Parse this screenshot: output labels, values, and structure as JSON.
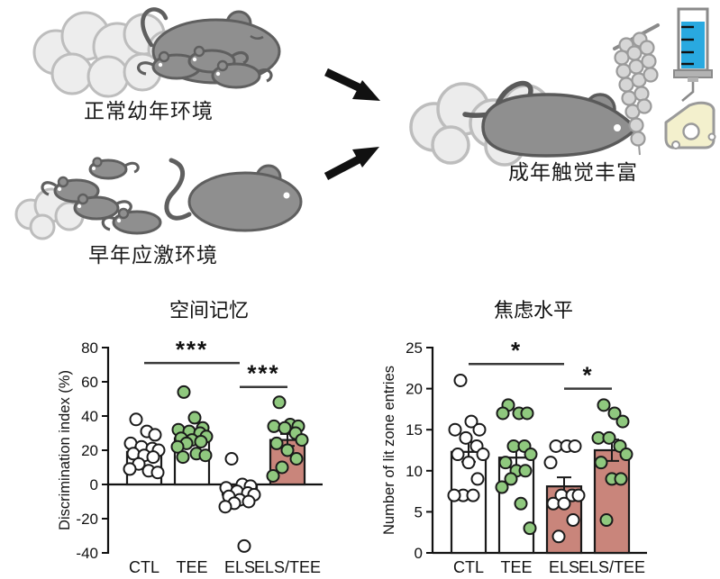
{
  "illustration": {
    "normal_env_label": "正常幼年环境",
    "stress_env_label": "早年应激环境",
    "enrichment_label": "成年触觉丰富",
    "icon_names": [
      "mouse-family-icon",
      "scattered-mice-icon",
      "bedding-cloud-icon",
      "arrow-icon",
      "beads-icon",
      "syringe-icon",
      "cheese-icon"
    ]
  },
  "colors": {
    "stress_bar": "#c9857b",
    "green_point": "#8fc87e",
    "white_point": "#ffffff",
    "syringe_blue": "#29a9e0",
    "cheese_yellow": "#f3f0cd",
    "mouse_gray": "#8f8f8f",
    "cloud_gray": "#ededed",
    "axis_black": "#111111"
  },
  "chart_data": [
    {
      "type": "bar",
      "title": "空间记忆",
      "ylabel": "Discrimination index (%)",
      "xlabel": "",
      "ylim": [
        -40,
        80
      ],
      "yticks": [
        80,
        60,
        40,
        20,
        0,
        -20,
        -40
      ],
      "grid": false,
      "legend": null,
      "categories": [
        "CTL",
        "TEE",
        "ELS",
        "ELS/TEE"
      ],
      "series": [
        {
          "name": "CTL",
          "mean": 19,
          "sem": 2.5,
          "bar_fill": "#ffffff",
          "point_fill": "#ffffff",
          "points": [
            38,
            31,
            29,
            24,
            22,
            21,
            20,
            18,
            17,
            16,
            12,
            9,
            8,
            7
          ]
        },
        {
          "name": "TEE",
          "mean": 27,
          "sem": 2.5,
          "bar_fill": "#ffffff",
          "point_fill": "#8fc87e",
          "points": [
            54,
            39,
            33,
            32,
            31,
            30,
            28,
            27,
            26,
            25,
            24,
            22,
            18,
            17,
            16
          ]
        },
        {
          "name": "ELS",
          "mean": -6,
          "sem": 3,
          "bar_fill": "#c9857b",
          "point_fill": "#ffffff",
          "points": [
            15,
            0,
            -1,
            -2,
            -4,
            -5,
            -6,
            -7,
            -9,
            -10,
            -11,
            -13,
            -36
          ]
        },
        {
          "name": "ELS/TEE",
          "mean": 26,
          "sem": 3.5,
          "bar_fill": "#c9857b",
          "point_fill": "#8fc87e",
          "points": [
            48,
            35,
            34,
            34,
            33,
            30,
            26,
            24,
            20,
            15,
            10,
            5
          ]
        }
      ],
      "significance": [
        {
          "from": "CTL",
          "to": "ELS",
          "y": 71,
          "label": "***"
        },
        {
          "from": "ELS",
          "to": "ELS/TEE",
          "y": 57,
          "label": "***"
        }
      ]
    },
    {
      "type": "bar",
      "title": "焦虑水平",
      "ylabel": "Number of lit zone entries",
      "xlabel": "",
      "ylim": [
        0,
        25
      ],
      "yticks": [
        25,
        20,
        15,
        10,
        5,
        0
      ],
      "grid": false,
      "legend": null,
      "categories": [
        "CTL",
        "TEE",
        "ELS",
        "ELS/TEE"
      ],
      "series": [
        {
          "name": "CTL",
          "mean": 12.3,
          "sem": 1.2,
          "bar_fill": "#ffffff",
          "point_fill": "#ffffff",
          "points": [
            21,
            16,
            15,
            15,
            14,
            13,
            12,
            12,
            11,
            9,
            7,
            7,
            7
          ]
        },
        {
          "name": "TEE",
          "mean": 11.6,
          "sem": 1.2,
          "bar_fill": "#ffffff",
          "point_fill": "#8fc87e",
          "points": [
            18,
            17,
            17,
            17,
            13,
            13,
            12,
            11,
            10,
            10,
            9,
            8,
            6,
            3
          ]
        },
        {
          "name": "ELS",
          "mean": 8.1,
          "sem": 1.1,
          "bar_fill": "#c9857b",
          "point_fill": "#ffffff",
          "points": [
            13,
            13,
            13,
            11,
            7,
            7,
            7,
            6,
            6,
            4,
            2
          ]
        },
        {
          "name": "ELS/TEE",
          "mean": 12.5,
          "sem": 1.3,
          "bar_fill": "#c9857b",
          "point_fill": "#8fc87e",
          "points": [
            18,
            17,
            16,
            14,
            14,
            13,
            12,
            11,
            9,
            9,
            4
          ]
        }
      ],
      "significance": [
        {
          "from": "CTL",
          "to": "ELS",
          "y": 23,
          "label": "*"
        },
        {
          "from": "ELS",
          "to": "ELS/TEE",
          "y": 20,
          "label": "*"
        }
      ]
    }
  ]
}
